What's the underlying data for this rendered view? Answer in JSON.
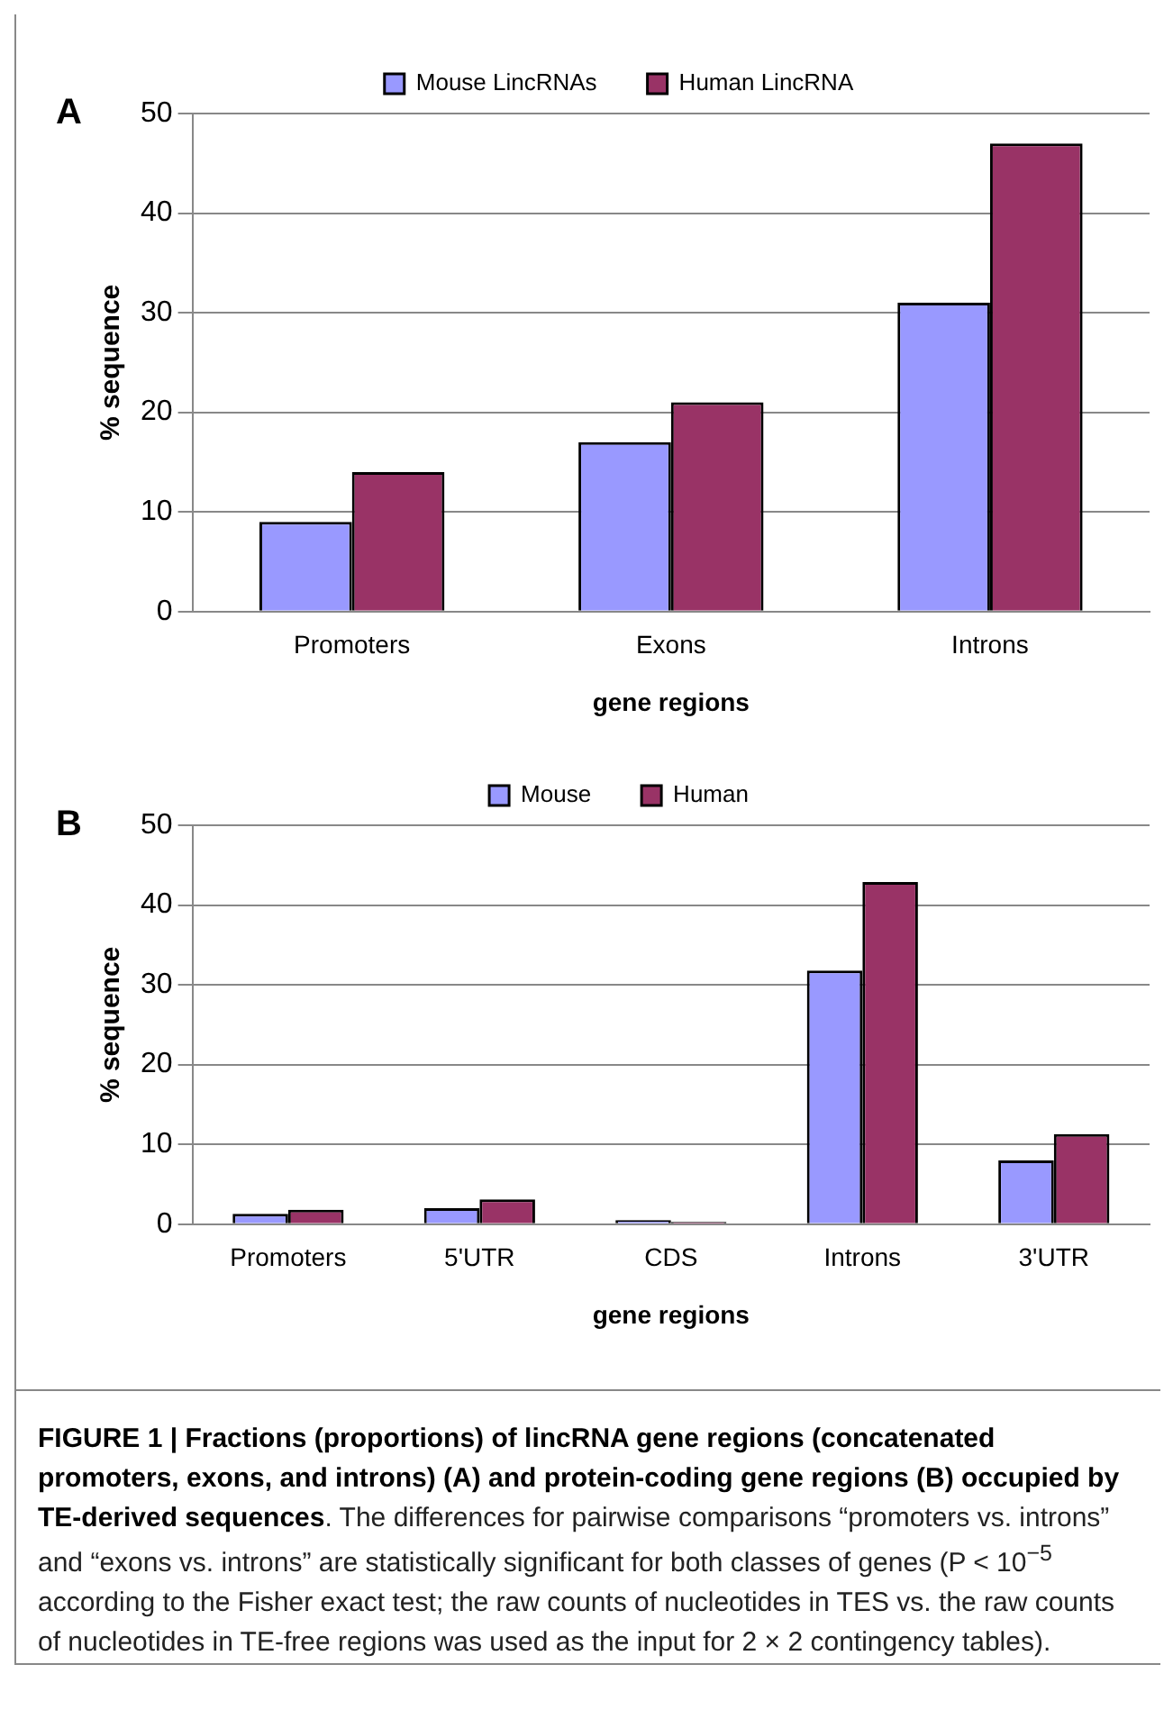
{
  "chart_data": [
    {
      "type": "bar",
      "title": "A",
      "categories": [
        "Promoters",
        "Exons",
        "Introns"
      ],
      "series": [
        {
          "name": "Mouse LincRNAs",
          "color": "#9999ff",
          "values": [
            9,
            17,
            31
          ]
        },
        {
          "name": "Human LincRNA",
          "color": "#993366",
          "values": [
            14,
            21,
            47
          ]
        }
      ],
      "xlabel": "gene regions",
      "ylabel": "% sequence",
      "ylim": [
        0,
        50
      ],
      "yticks": [
        0,
        10,
        20,
        30,
        40,
        50
      ],
      "grid": "y",
      "legend": "top"
    },
    {
      "type": "bar",
      "title": "B",
      "categories": [
        "Promoters",
        "5'UTR",
        "CDS",
        "Introns",
        "3'UTR"
      ],
      "series": [
        {
          "name": "Mouse",
          "color": "#9999ff",
          "values": [
            1.3,
            2,
            0.5,
            31.8,
            8
          ]
        },
        {
          "name": "Human",
          "color": "#993366",
          "values": [
            1.8,
            3.1,
            0.3,
            42.9,
            11.3
          ]
        }
      ],
      "xlabel": "gene regions",
      "ylabel": "% sequence",
      "ylim": [
        0,
        50
      ],
      "yticks": [
        0,
        10,
        20,
        30,
        40,
        50
      ],
      "grid": "y",
      "legend": "top",
      "annotations": [
        "FIGURE 1 | Fractions (proportions) of lincRNA gene regions (concatenated promoters, exons, and introns) (A) and protein-coding gene regions (B) occupied by TE-derived sequences",
        ". The differences for pairwise comparisons “promoters vs. introns” and “exons vs. introns” are statistically significant for both classes of genes (P < 10$^{−5}$ according to the Fisher exact test; the raw counts of nucleotides in TES vs. the raw counts of nucleotides in TE-free regions was used as the input for 2 × 2 contingency tables)."
      ]
    }
  ]
}
